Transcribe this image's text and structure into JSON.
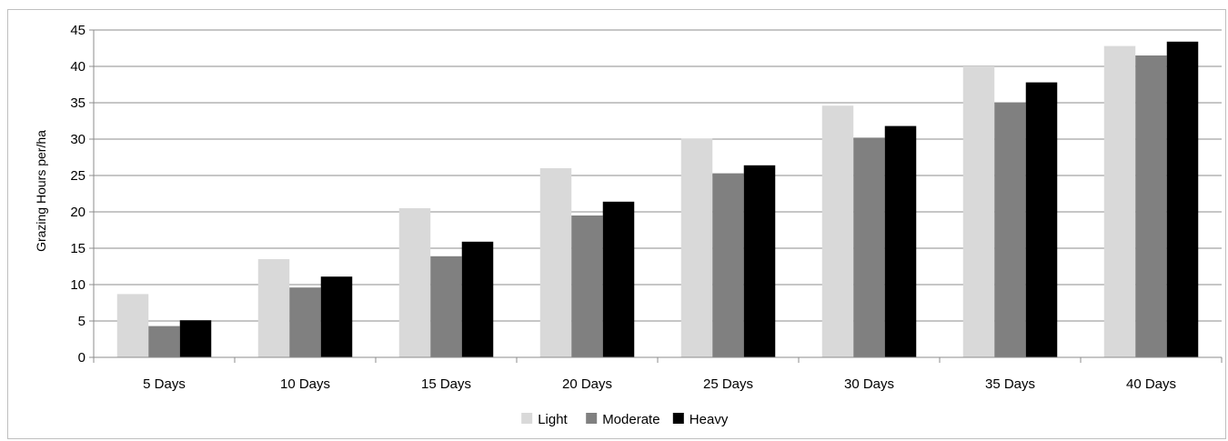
{
  "chart_data": {
    "type": "bar",
    "title": "",
    "xlabel": "",
    "ylabel": "Grazing Hours per/ha",
    "ylim": [
      0,
      45
    ],
    "yticks": [
      0,
      5,
      10,
      15,
      20,
      25,
      30,
      35,
      40,
      45
    ],
    "grid": true,
    "legend_position": "bottom",
    "categories": [
      "5 Days",
      "10 Days",
      "15 Days",
      "20 Days",
      "25 Days",
      "30 Days",
      "35 Days",
      "40 Days"
    ],
    "series": [
      {
        "name": "Light",
        "color": "#d9d9d9",
        "values": [
          8.7,
          13.5,
          20.5,
          26.0,
          30.1,
          34.6,
          40.0,
          42.8
        ]
      },
      {
        "name": "Moderate",
        "color": "#808080",
        "values": [
          4.3,
          9.6,
          13.9,
          19.5,
          25.3,
          30.2,
          35.0,
          41.5
        ]
      },
      {
        "name": "Heavy",
        "color": "#000000",
        "values": [
          5.1,
          11.1,
          15.9,
          21.4,
          26.4,
          31.8,
          37.8,
          43.4
        ]
      }
    ]
  }
}
